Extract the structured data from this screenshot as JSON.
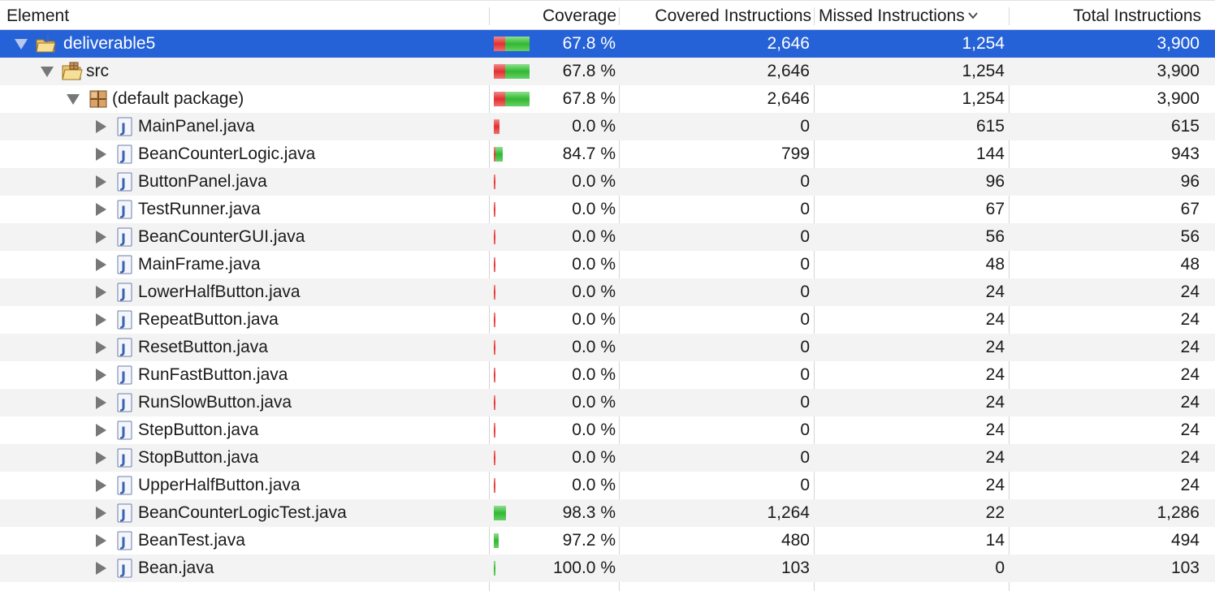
{
  "columns": {
    "element": "Element",
    "coverage": "Coverage",
    "covered": "Covered Instructions",
    "missed": "Missed Instructions",
    "total": "Total Instructions",
    "sort_icon": "chevron-down-icon"
  },
  "colors": {
    "selection": "#2662d7",
    "stripe": "#f3f3f3",
    "covered_bar": "#32b832",
    "missed_bar": "#e23030"
  },
  "rows": [
    {
      "name": "deliverable5",
      "kind": "project",
      "icon": "java-project-icon",
      "expanded": true,
      "coverage": "67.8 %",
      "covered": "2,646",
      "missed": "1,254",
      "total": "3,900",
      "selected": true,
      "covered_ratio": 0.678,
      "bar_fraction": 1.0
    },
    {
      "name": "src",
      "kind": "folder",
      "icon": "source-folder-icon",
      "expanded": true,
      "coverage": "67.8 %",
      "covered": "2,646",
      "missed": "1,254",
      "total": "3,900",
      "covered_ratio": 0.678,
      "bar_fraction": 1.0
    },
    {
      "name": "(default package)",
      "kind": "package",
      "icon": "package-icon",
      "expanded": true,
      "coverage": "67.8 %",
      "covered": "2,646",
      "missed": "1,254",
      "total": "3,900",
      "covered_ratio": 0.678,
      "bar_fraction": 1.0
    },
    {
      "name": "MainPanel.java",
      "kind": "file",
      "icon": "java-file-icon",
      "coverage": "0.0 %",
      "covered": "0",
      "missed": "615",
      "total": "615",
      "covered_ratio": 0.0,
      "bar_fraction": 0.158
    },
    {
      "name": "BeanCounterLogic.java",
      "kind": "file",
      "icon": "java-file-icon",
      "coverage": "84.7 %",
      "covered": "799",
      "missed": "144",
      "total": "943",
      "covered_ratio": 0.847,
      "bar_fraction": 0.242
    },
    {
      "name": "ButtonPanel.java",
      "kind": "file",
      "icon": "java-file-icon",
      "coverage": "0.0 %",
      "covered": "0",
      "missed": "96",
      "total": "96",
      "covered_ratio": 0.0,
      "bar_fraction": 0.025
    },
    {
      "name": "TestRunner.java",
      "kind": "file",
      "icon": "java-file-icon",
      "coverage": "0.0 %",
      "covered": "0",
      "missed": "67",
      "total": "67",
      "covered_ratio": 0.0,
      "bar_fraction": 0.017
    },
    {
      "name": "BeanCounterGUI.java",
      "kind": "file",
      "icon": "java-file-icon",
      "coverage": "0.0 %",
      "covered": "0",
      "missed": "56",
      "total": "56",
      "covered_ratio": 0.0,
      "bar_fraction": 0.014
    },
    {
      "name": "MainFrame.java",
      "kind": "file",
      "icon": "java-file-icon",
      "coverage": "0.0 %",
      "covered": "0",
      "missed": "48",
      "total": "48",
      "covered_ratio": 0.0,
      "bar_fraction": 0.012
    },
    {
      "name": "LowerHalfButton.java",
      "kind": "file",
      "icon": "java-file-icon",
      "coverage": "0.0 %",
      "covered": "0",
      "missed": "24",
      "total": "24",
      "covered_ratio": 0.0,
      "bar_fraction": 0.006
    },
    {
      "name": "RepeatButton.java",
      "kind": "file",
      "icon": "java-file-icon",
      "coverage": "0.0 %",
      "covered": "0",
      "missed": "24",
      "total": "24",
      "covered_ratio": 0.0,
      "bar_fraction": 0.006
    },
    {
      "name": "ResetButton.java",
      "kind": "file",
      "icon": "java-file-icon",
      "coverage": "0.0 %",
      "covered": "0",
      "missed": "24",
      "total": "24",
      "covered_ratio": 0.0,
      "bar_fraction": 0.006
    },
    {
      "name": "RunFastButton.java",
      "kind": "file",
      "icon": "java-file-icon",
      "coverage": "0.0 %",
      "covered": "0",
      "missed": "24",
      "total": "24",
      "covered_ratio": 0.0,
      "bar_fraction": 0.006
    },
    {
      "name": "RunSlowButton.java",
      "kind": "file",
      "icon": "java-file-icon",
      "coverage": "0.0 %",
      "covered": "0",
      "missed": "24",
      "total": "24",
      "covered_ratio": 0.0,
      "bar_fraction": 0.006
    },
    {
      "name": "StepButton.java",
      "kind": "file",
      "icon": "java-file-icon",
      "coverage": "0.0 %",
      "covered": "0",
      "missed": "24",
      "total": "24",
      "covered_ratio": 0.0,
      "bar_fraction": 0.006
    },
    {
      "name": "StopButton.java",
      "kind": "file",
      "icon": "java-file-icon",
      "coverage": "0.0 %",
      "covered": "0",
      "missed": "24",
      "total": "24",
      "covered_ratio": 0.0,
      "bar_fraction": 0.006
    },
    {
      "name": "UpperHalfButton.java",
      "kind": "file",
      "icon": "java-file-icon",
      "coverage": "0.0 %",
      "covered": "0",
      "missed": "24",
      "total": "24",
      "covered_ratio": 0.0,
      "bar_fraction": 0.006
    },
    {
      "name": "BeanCounterLogicTest.java",
      "kind": "file",
      "icon": "java-file-icon",
      "coverage": "98.3 %",
      "covered": "1,264",
      "missed": "22",
      "total": "1,286",
      "covered_ratio": 0.983,
      "bar_fraction": 0.33
    },
    {
      "name": "BeanTest.java",
      "kind": "file",
      "icon": "java-file-icon",
      "coverage": "97.2 %",
      "covered": "480",
      "missed": "14",
      "total": "494",
      "covered_ratio": 0.972,
      "bar_fraction": 0.127
    },
    {
      "name": "Bean.java",
      "kind": "file",
      "icon": "java-file-icon",
      "coverage": "100.0 %",
      "covered": "103",
      "missed": "0",
      "total": "103",
      "covered_ratio": 1.0,
      "bar_fraction": 0.026
    }
  ]
}
